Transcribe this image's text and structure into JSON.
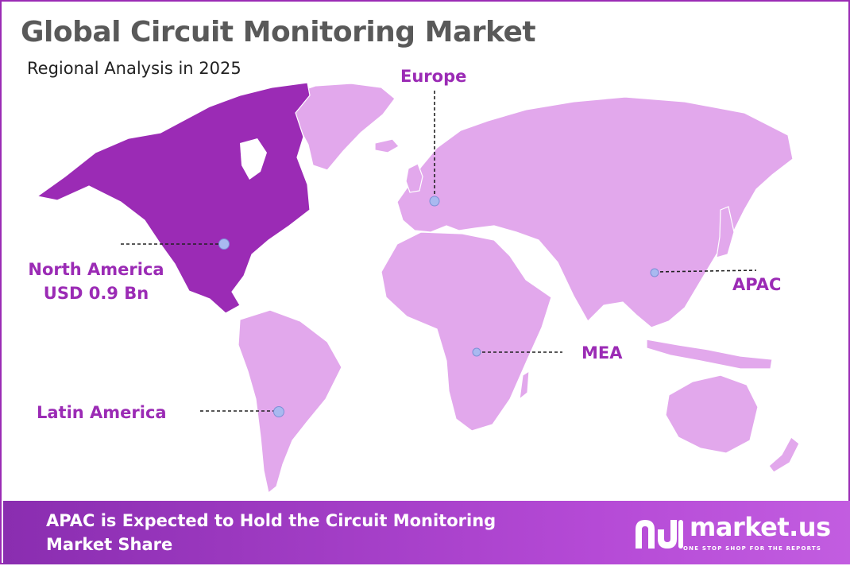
{
  "title": "Global Circuit Monitoring Market",
  "subtitle": "Regional Analysis in 2025",
  "regions": {
    "north_america": {
      "name": "North America",
      "value": "USD 0.9 Bn",
      "highlighted": true
    },
    "europe": {
      "name": "Europe"
    },
    "apac": {
      "name": "APAC"
    },
    "mea": {
      "name": "MEA"
    },
    "latin_america": {
      "name": "Latin America"
    }
  },
  "footer": {
    "text": "APAC is Expected to Hold the Circuit Monitoring Market Share"
  },
  "brand": {
    "name": "market.us",
    "tagline": "ONE STOP SHOP FOR THE REPORTS",
    "logo_icon": "market-us-logo-icon"
  },
  "colors": {
    "highlight": "#9b2bb5",
    "land": "#e2a8ec",
    "marker": "#a9b9f0",
    "footer_gradient_start": "#8a2db0",
    "footer_gradient_end": "#c25de0",
    "title": "#595959"
  }
}
